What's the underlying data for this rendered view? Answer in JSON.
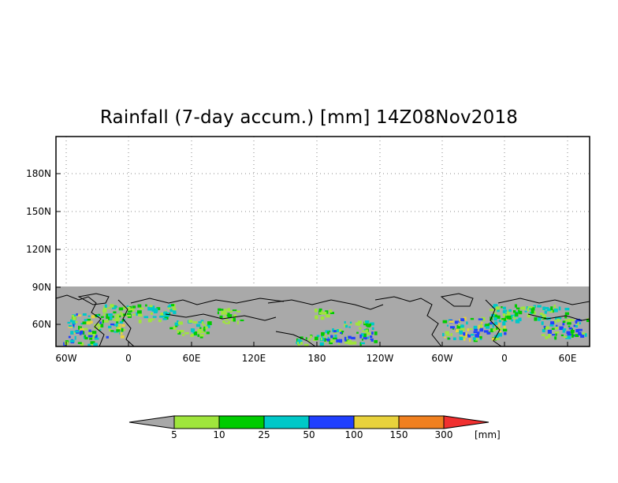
{
  "title": "Rainfall (7-day accum.) [mm] 14Z08Nov2018",
  "map": {
    "x_tick_labels": [
      "60W",
      "0",
      "60E",
      "120E",
      "180",
      "120W",
      "60W",
      "0",
      "60E"
    ],
    "y_tick_labels": [
      "180N",
      "150N",
      "120N",
      "90N",
      "60N"
    ],
    "background_color": "#a9a9a9",
    "coastline_color": "#000000",
    "grid": "dotted"
  },
  "colorbar": {
    "unit_label": "[mm]",
    "tick_labels": [
      "5",
      "10",
      "25",
      "50",
      "100",
      "150",
      "300"
    ],
    "colors": [
      "#a8a8a8",
      "#9fe53c",
      "#00cc00",
      "#00c8c8",
      "#2040ff",
      "#e8d23c",
      "#f08020",
      "#f03030"
    ]
  }
}
